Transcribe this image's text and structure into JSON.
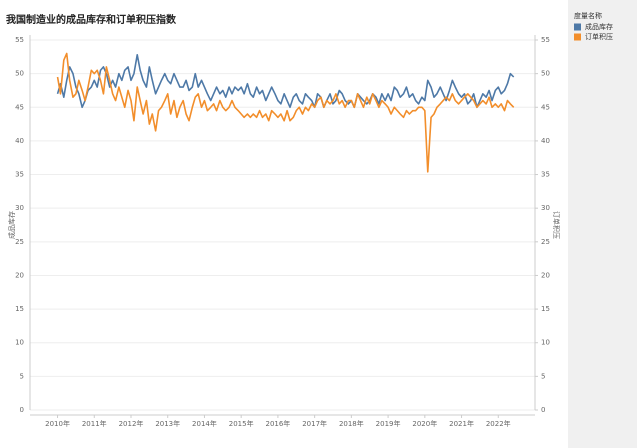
{
  "chart_data": {
    "type": "line",
    "title": "我国制造业的成品库存和订单积压指数",
    "ylabel": "成品库存",
    "y2label": "订单积压",
    "legend_title": "度量名称",
    "legend": "right",
    "grid": true,
    "xlim": [
      2009.25,
      2023
    ],
    "ylim": [
      0,
      55
    ],
    "y2lim": [
      0,
      55
    ],
    "yticks": [
      0,
      5,
      10,
      15,
      20,
      25,
      30,
      35,
      40,
      45,
      50,
      55
    ],
    "y2ticks": [
      0,
      5,
      10,
      15,
      20,
      25,
      30,
      35,
      40,
      45,
      50,
      55
    ],
    "xticks": [
      {
        "value": 2010,
        "label": "2010年"
      },
      {
        "value": 2011,
        "label": "2011年"
      },
      {
        "value": 2012,
        "label": "2012年"
      },
      {
        "value": 2013,
        "label": "2013年"
      },
      {
        "value": 2014,
        "label": "2014年"
      },
      {
        "value": 2015,
        "label": "2015年"
      },
      {
        "value": 2016,
        "label": "2016年"
      },
      {
        "value": 2017,
        "label": "2017年"
      },
      {
        "value": 2018,
        "label": "2018年"
      },
      {
        "value": 2019,
        "label": "2019年"
      },
      {
        "value": 2020,
        "label": "2020年"
      },
      {
        "value": 2021,
        "label": "2021年"
      },
      {
        "value": 2022,
        "label": "2022年"
      }
    ],
    "x": [
      2010,
      2010.08,
      2010.17,
      2010.25,
      2010.33,
      2010.42,
      2010.5,
      2010.58,
      2010.67,
      2010.75,
      2010.83,
      2010.92,
      2011,
      2011.08,
      2011.17,
      2011.25,
      2011.33,
      2011.42,
      2011.5,
      2011.58,
      2011.67,
      2011.75,
      2011.83,
      2011.92,
      2012,
      2012.08,
      2012.17,
      2012.25,
      2012.33,
      2012.42,
      2012.5,
      2012.58,
      2012.67,
      2012.75,
      2012.83,
      2012.92,
      2013,
      2013.08,
      2013.17,
      2013.25,
      2013.33,
      2013.42,
      2013.5,
      2013.58,
      2013.67,
      2013.75,
      2013.83,
      2013.92,
      2014,
      2014.08,
      2014.17,
      2014.25,
      2014.33,
      2014.42,
      2014.5,
      2014.58,
      2014.67,
      2014.75,
      2014.83,
      2014.92,
      2015,
      2015.08,
      2015.17,
      2015.25,
      2015.33,
      2015.42,
      2015.5,
      2015.58,
      2015.67,
      2015.75,
      2015.83,
      2015.92,
      2016,
      2016.08,
      2016.17,
      2016.25,
      2016.33,
      2016.42,
      2016.5,
      2016.58,
      2016.67,
      2016.75,
      2016.83,
      2016.92,
      2017,
      2017.08,
      2017.17,
      2017.25,
      2017.33,
      2017.42,
      2017.5,
      2017.58,
      2017.67,
      2017.75,
      2017.83,
      2017.92,
      2018,
      2018.08,
      2018.17,
      2018.25,
      2018.33,
      2018.42,
      2018.5,
      2018.58,
      2018.67,
      2018.75,
      2018.83,
      2018.92,
      2019,
      2019.08,
      2019.17,
      2019.25,
      2019.33,
      2019.42,
      2019.5,
      2019.58,
      2019.67,
      2019.75,
      2019.83,
      2019.92,
      2020,
      2020.08,
      2020.17,
      2020.25,
      2020.33,
      2020.42,
      2020.5,
      2020.58,
      2020.67,
      2020.75,
      2020.83,
      2020.92,
      2021,
      2021.08,
      2021.17,
      2021.25,
      2021.33,
      2021.42,
      2021.5,
      2021.58,
      2021.67,
      2021.75,
      2021.83,
      2021.92,
      2022,
      2022.08,
      2022.17,
      2022.25,
      2022.33,
      2022.42
    ],
    "series": [
      {
        "name": "成品库存",
        "color": "#4e79a7",
        "axis": "y",
        "values": [
          47,
          48.5,
          46.5,
          49,
          51,
          50,
          48,
          47,
          45,
          46,
          47.5,
          48,
          49,
          48,
          50.5,
          51,
          50,
          48,
          49,
          48,
          50,
          49,
          50.5,
          51,
          49,
          50,
          52.8,
          50.5,
          49,
          48,
          51,
          49,
          47,
          48,
          49,
          50,
          49,
          48.5,
          50,
          49,
          48,
          48,
          49,
          47.5,
          48,
          50,
          48,
          49,
          48,
          47,
          46,
          47,
          48,
          47,
          47.5,
          46.5,
          48,
          47,
          48,
          47.5,
          48,
          47,
          48.5,
          47,
          46.5,
          48,
          47,
          47.5,
          46,
          47,
          48,
          47,
          46,
          45.5,
          47,
          46,
          45,
          46.5,
          47,
          46,
          45.5,
          47,
          46.5,
          46,
          45,
          47,
          46.5,
          45,
          46,
          47,
          45.5,
          46,
          47.5,
          47,
          46,
          45.5,
          46,
          45,
          47,
          46.5,
          46,
          45.5,
          46,
          47,
          46.5,
          45.5,
          47,
          46,
          47,
          46,
          48,
          47.5,
          46.5,
          47,
          48,
          46.5,
          47,
          46,
          45.5,
          46.5,
          46,
          49,
          48,
          46.5,
          47,
          48,
          47,
          46,
          47.5,
          49,
          48,
          47,
          46.5,
          47,
          45.5,
          46,
          47,
          45,
          46,
          47,
          46.5,
          47.5,
          46,
          47.5,
          48,
          47,
          47.5,
          48.5,
          50,
          49.5
        ]
      },
      {
        "name": "订单积压",
        "color": "#f28e2b",
        "axis": "y2",
        "values": [
          49.5,
          47,
          52,
          53,
          49,
          46.5,
          47,
          49,
          47.5,
          46,
          48,
          50.5,
          50,
          50.5,
          49,
          47,
          51,
          49,
          47,
          46,
          48,
          46.5,
          45,
          47.5,
          46,
          43,
          48,
          46,
          44,
          46,
          42.5,
          44,
          41.5,
          44.5,
          45,
          46,
          47,
          44,
          46,
          43.5,
          45,
          46,
          44,
          43,
          45,
          46.5,
          47,
          45,
          46,
          44.5,
          45,
          45.5,
          44.5,
          46,
          45,
          44.5,
          45,
          46,
          45,
          44.5,
          44,
          43.5,
          44,
          43.5,
          44,
          43.5,
          44.5,
          43.5,
          44,
          43,
          44.5,
          44,
          43.5,
          44,
          43,
          44.5,
          43,
          43.5,
          44.5,
          45,
          44,
          45,
          44.5,
          45.5,
          45,
          46,
          46.5,
          45,
          46,
          45.5,
          46,
          47,
          45.5,
          46,
          45,
          46,
          46,
          45,
          47,
          46,
          45,
          46.5,
          45.5,
          47,
          46,
          45,
          46,
          45.5,
          45,
          44,
          45,
          44.5,
          44,
          43.5,
          44.5,
          44,
          44.5,
          44.5,
          45,
          45,
          44.5,
          35.4,
          43.5,
          44,
          45,
          45.5,
          46,
          46.5,
          46,
          47,
          46,
          45.5,
          46,
          46.5,
          47,
          46.5,
          46,
          45,
          45.5,
          46,
          45.5,
          46.5,
          45,
          45.5,
          45,
          45.5,
          44.5,
          46,
          45.5,
          45
        ]
      }
    ]
  }
}
